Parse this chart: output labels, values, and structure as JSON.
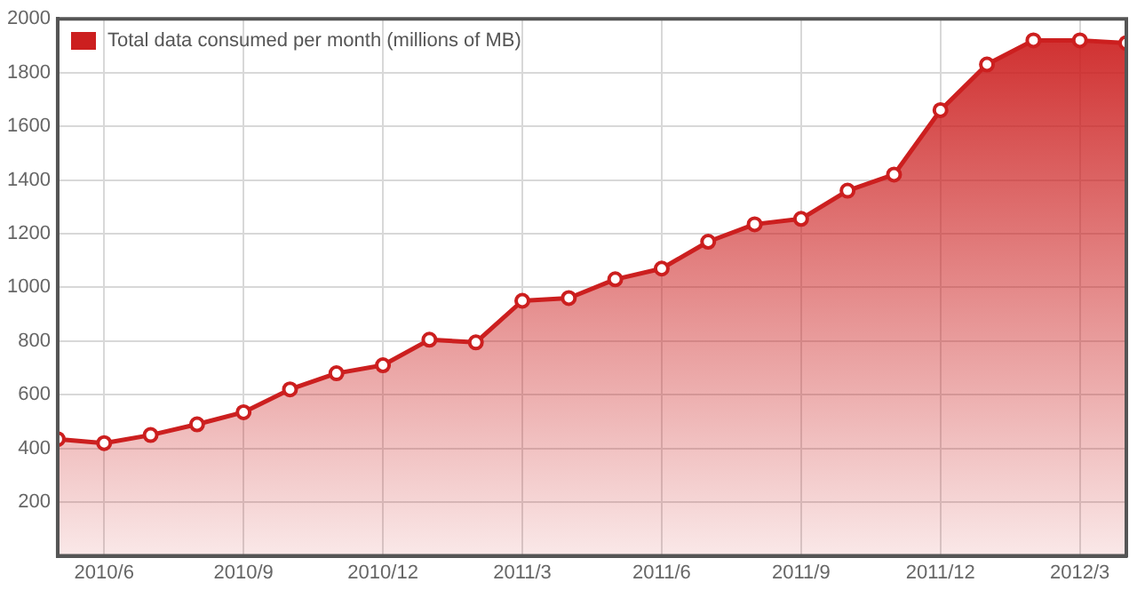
{
  "chart_data": {
    "type": "area",
    "x": [
      "2010-05",
      "2010-06",
      "2010-07",
      "2010-08",
      "2010-09",
      "2010-10",
      "2010-11",
      "2010-12",
      "2011-01",
      "2011-02",
      "2011-03",
      "2011-04",
      "2011-05",
      "2011-06",
      "2011-07",
      "2011-08",
      "2011-09",
      "2011-10",
      "2011-11",
      "2011-12",
      "2012-01",
      "2012-02",
      "2012-03",
      "2012-04"
    ],
    "series": [
      {
        "name": "Total data consumed per month (millions of MB)",
        "color": "#cc1f1f",
        "values": [
          435,
          420,
          450,
          490,
          535,
          620,
          680,
          710,
          805,
          795,
          950,
          960,
          1030,
          1070,
          1170,
          1235,
          1255,
          1360,
          1420,
          1660,
          1830,
          1920,
          1920,
          1910
        ]
      }
    ],
    "xlim": [
      "2010-05",
      "2012-04"
    ],
    "xticks": [
      {
        "value": "2010-06",
        "label": "2010/6"
      },
      {
        "value": "2010-09",
        "label": "2010/9"
      },
      {
        "value": "2010-12",
        "label": "2010/12"
      },
      {
        "value": "2011-03",
        "label": "2011/3"
      },
      {
        "value": "2011-06",
        "label": "2011/6"
      },
      {
        "value": "2011-09",
        "label": "2011/9"
      },
      {
        "value": "2011-12",
        "label": "2011/12"
      },
      {
        "value": "2012-03",
        "label": "2012/3"
      }
    ],
    "ylim": [
      0,
      2000
    ],
    "yticks": [
      200,
      400,
      600,
      800,
      1000,
      1200,
      1400,
      1600,
      1800,
      2000
    ],
    "grid": true,
    "legend": "top left",
    "marker": "circle",
    "line_style": "solid"
  }
}
